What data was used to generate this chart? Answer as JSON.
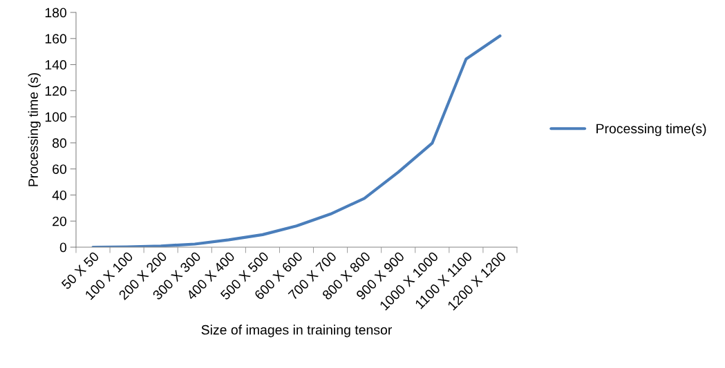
{
  "chart_data": {
    "type": "line",
    "xlabel": "Size of images in training tensor",
    "ylabel": "Processing time (s)",
    "categories": [
      "50 X 50",
      "100 X 100",
      "200 X 200",
      "300 X 300",
      "400 X 400",
      "500 X 500",
      "600 X 600",
      "700 X 700",
      "800 X 800",
      "900 X 900",
      "1000 X 1000",
      "1100 X 1100",
      "1200 X 1200"
    ],
    "series": [
      {
        "name": "Processing time(s)",
        "color": "#4a7ebb",
        "values": [
          0,
          0.2,
          0.9,
          2.4,
          5.6,
          9.6,
          16.3,
          25.4,
          37.4,
          57.5,
          79.7,
          144.3,
          162
        ]
      }
    ],
    "ylim": [
      0,
      180
    ],
    "yticks": [
      0,
      20,
      40,
      60,
      80,
      100,
      120,
      140,
      160,
      180
    ],
    "grid": false,
    "legend": "right",
    "marker": "none",
    "line_style": "solid"
  }
}
